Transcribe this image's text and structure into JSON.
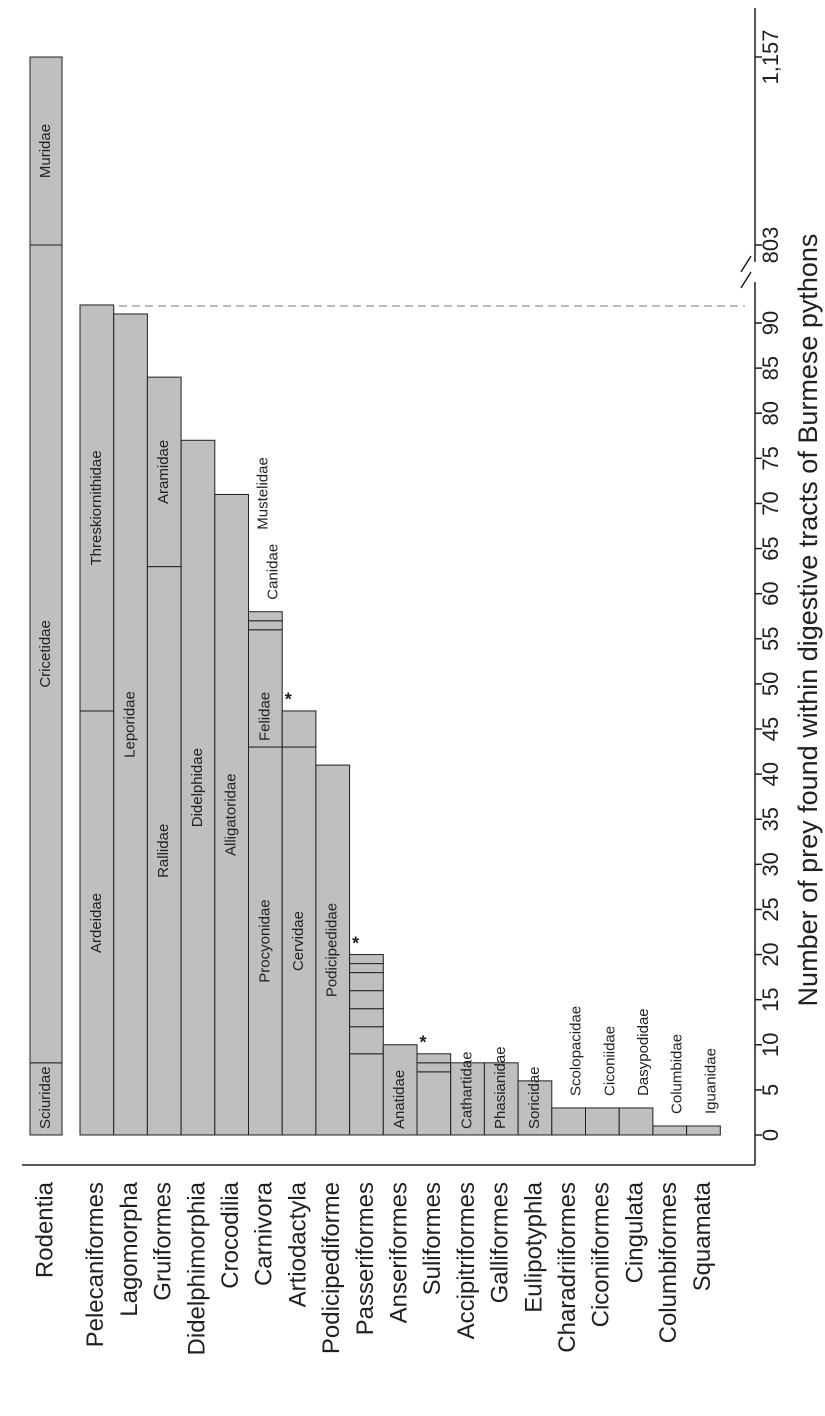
{
  "chart_data": {
    "type": "stacked-bar",
    "axis_label": "Number of prey found within digestive tracts of Burmese pythons",
    "categories": [
      "Rodentia",
      "Pelecaniformes",
      "Lagomorpha",
      "Gruiformes",
      "Didelphimorphia",
      "Crocodilia",
      "Carnivora",
      "Artiodactyla",
      "Podicipediforme",
      "Passeriformes",
      "Anseriformes",
      "Suliformes",
      "Accipitriformes",
      "Galliformes",
      "Eulipotyphla",
      "Charadriiformes",
      "Ciconiiformes",
      "Cingulata",
      "Columbiformes",
      "Squamata"
    ],
    "segments": [
      [
        {
          "label": "Sciuridae",
          "value": 8
        },
        {
          "label": "Cricetidae",
          "value": 795
        },
        {
          "label": "Muridae",
          "value": 354
        }
      ],
      [
        {
          "label": "Ardeidae",
          "value": 47
        },
        {
          "label": "Threskiornithidae",
          "value": 45
        }
      ],
      [
        {
          "label": "Leporidae",
          "value": 91
        }
      ],
      [
        {
          "label": "Rallidae",
          "value": 63
        },
        {
          "label": "Aramidae",
          "value": 21
        }
      ],
      [
        {
          "label": "Didelphidae",
          "value": 77
        }
      ],
      [
        {
          "label": "Alligatoridae",
          "value": 71
        }
      ],
      [
        {
          "label": "Procyonidae",
          "value": 43
        },
        {
          "label": "Felidae",
          "value": 13
        },
        {
          "label": "Canidae",
          "value": 1
        },
        {
          "label": "Mustelidae",
          "value": 1
        }
      ],
      [
        {
          "label": "Cervidae",
          "value": 43
        },
        {
          "value": 4,
          "marker": "*"
        }
      ],
      [
        {
          "label": "Podicipedidae",
          "value": 41
        }
      ],
      [
        {
          "value": 9
        },
        {
          "value": 3
        },
        {
          "value": 2
        },
        {
          "value": 2
        },
        {
          "value": 2
        },
        {
          "value": 1
        },
        {
          "value": 1,
          "marker": "*"
        }
      ],
      [
        {
          "label": "Anatidae",
          "value": 10
        }
      ],
      [
        {
          "value": 7
        },
        {
          "value": 1
        },
        {
          "value": 1,
          "marker": "*"
        }
      ],
      [
        {
          "label": "Cathartidae",
          "value": 8
        }
      ],
      [
        {
          "label": "Phasianidae",
          "value": 8
        }
      ],
      [
        {
          "label": "Soricidae",
          "value": 6
        }
      ],
      [
        {
          "label": "Scolopacidae",
          "value": 3
        }
      ],
      [
        {
          "label": "Ciconiidae",
          "value": 3
        }
      ],
      [
        {
          "label": "Dasypodidae",
          "value": 3
        }
      ],
      [
        {
          "label": "Columbidae",
          "value": 1
        }
      ],
      [
        {
          "label": "Iguanidae",
          "value": 1
        }
      ]
    ],
    "ylim": [
      0,
      1157
    ],
    "yticks": [
      0,
      5,
      10,
      15,
      20,
      25,
      30,
      35,
      40,
      45,
      50,
      55,
      60,
      65,
      70,
      75,
      80,
      85,
      90,
      803,
      {
        "value": 1157,
        "label": "1,157"
      }
    ],
    "axis_break": true,
    "color": "#bdbfc1"
  }
}
